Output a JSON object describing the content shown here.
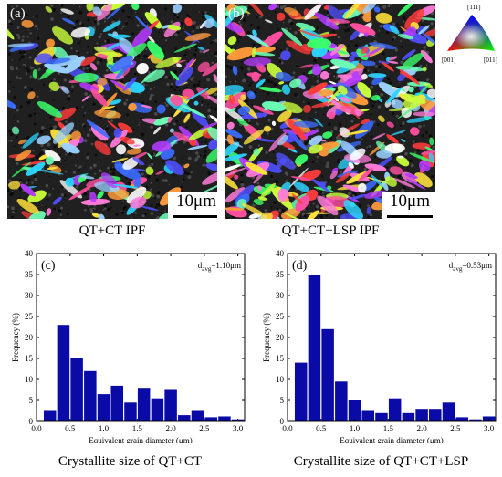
{
  "micrographs": [
    {
      "id": "a",
      "label": "(a)",
      "scale": "10μm",
      "caption": "QT+CT IPF"
    },
    {
      "id": "b",
      "label": "(b)",
      "scale": "10μm",
      "caption": "QT+CT+LSP IPF"
    }
  ],
  "ipf_legend": {
    "top": "[111]",
    "left": "[001]",
    "right": "[011]"
  },
  "chart_data": [
    {
      "type": "bar",
      "panel_label": "(c)",
      "annotation_base": "d",
      "annotation_sub": "avg",
      "annotation_value": "=1.10μm",
      "xlabel": "Equivalent grain diameter (μm)",
      "ylabel": "Frequency (%)",
      "caption": "Crystallite size of QT+CT",
      "xlim": [
        0,
        3.1
      ],
      "ylim": [
        0,
        40
      ],
      "xticks": [
        0.0,
        0.5,
        1.0,
        1.5,
        2.0,
        2.5,
        3.0
      ],
      "xtick_labels": [
        "0.0",
        "0.5",
        "1.0",
        "1.5",
        "2.0",
        "2.5",
        "3.0"
      ],
      "yticks": [
        0,
        5,
        10,
        15,
        20,
        25,
        30,
        35,
        40
      ],
      "bar_width": 0.2,
      "bar_color": "#0a0aa6",
      "x": [
        0.2,
        0.4,
        0.6,
        0.8,
        1.0,
        1.2,
        1.4,
        1.6,
        1.8,
        2.0,
        2.2,
        2.4,
        2.6,
        2.8,
        3.0
      ],
      "values": [
        2.5,
        23,
        15,
        12,
        6.5,
        8.5,
        4.5,
        8,
        5.5,
        7.5,
        1.5,
        2.5,
        1,
        1.2,
        0.5
      ]
    },
    {
      "type": "bar",
      "panel_label": "(d)",
      "annotation_base": "d",
      "annotation_sub": "avg",
      "annotation_value": "=0.53μm",
      "xlabel": "Equivalent grain diameter (μm)",
      "ylabel": "Frequency (%)",
      "caption": "Crystallite size of QT+CT+LSP",
      "xlim": [
        0,
        3.1
      ],
      "ylim": [
        0,
        40
      ],
      "xticks": [
        0.0,
        0.5,
        1.0,
        1.5,
        2.0,
        2.5,
        3.0
      ],
      "xtick_labels": [
        "0.0",
        "0.5",
        "1.0",
        "1.5",
        "2.0",
        "2.5",
        "3.0"
      ],
      "yticks": [
        0,
        5,
        10,
        15,
        20,
        25,
        30,
        35,
        40
      ],
      "bar_width": 0.2,
      "bar_color": "#0a0aa6",
      "x": [
        0.2,
        0.4,
        0.6,
        0.8,
        1.0,
        1.2,
        1.4,
        1.6,
        1.8,
        2.0,
        2.2,
        2.4,
        2.6,
        2.8,
        3.0
      ],
      "values": [
        14,
        35,
        22,
        9.5,
        5,
        2.5,
        2,
        5.5,
        2,
        3,
        3,
        4.5,
        1,
        0.5,
        1.2
      ]
    }
  ]
}
